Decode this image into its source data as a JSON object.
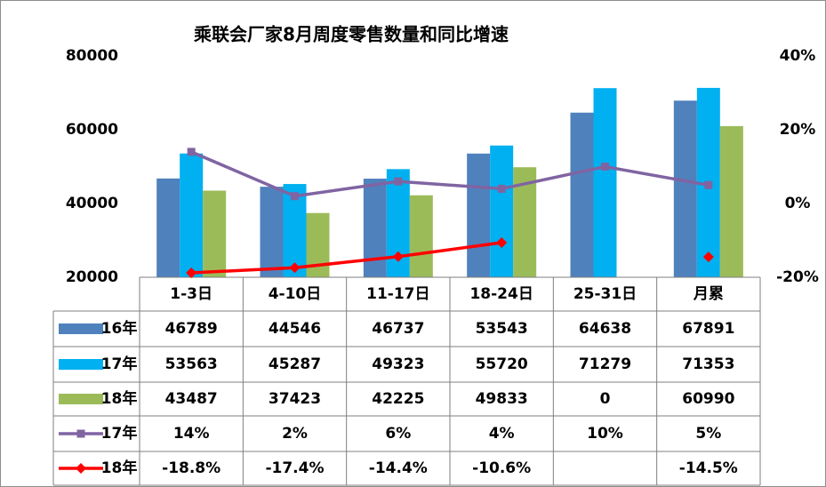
{
  "chart_data": {
    "type": "bar",
    "title": "乘联会厂家8月周度零售数量和同比增速",
    "categories": [
      "1-3日",
      "4-10日",
      "11-17日",
      "18-24日",
      "25-31日",
      "月累"
    ],
    "ylim": [
      20000,
      80000
    ],
    "yticks": [
      20000,
      40000,
      60000,
      80000
    ],
    "y2lim": [
      -20,
      40
    ],
    "y2ticks": [
      {
        "value": -20,
        "label": "-20%"
      },
      {
        "value": 0,
        "label": "0%"
      },
      {
        "value": 20,
        "label": "20%"
      },
      {
        "value": 40,
        "label": "40%"
      }
    ],
    "series": [
      {
        "name": "16年",
        "type": "bar",
        "color": "#4f81bd",
        "values": [
          46789,
          44546,
          46737,
          53543,
          64638,
          67891
        ]
      },
      {
        "name": "17年",
        "type": "bar",
        "color": "#00b0f0",
        "values": [
          53563,
          45287,
          49323,
          55720,
          71279,
          71353
        ]
      },
      {
        "name": "18年",
        "type": "bar",
        "color": "#9bbb59",
        "values": [
          43487,
          37423,
          42225,
          49833,
          0,
          60990
        ]
      },
      {
        "name": "17年",
        "type": "line",
        "marker": "square",
        "axis": "y2",
        "color": "#8064a2",
        "values": [
          14,
          2,
          6,
          4,
          10,
          5
        ],
        "value_labels": [
          "14%",
          "2%",
          "6%",
          "4%",
          "10%",
          "5%"
        ]
      },
      {
        "name": "18年",
        "type": "line",
        "marker": "diamond",
        "axis": "y2",
        "color": "#ff0000",
        "values": [
          -18.8,
          -17.4,
          -14.4,
          -10.6,
          null,
          -14.5
        ],
        "value_labels": [
          "-18.8%",
          "-17.4%",
          "-14.4%",
          "-10.6%",
          null,
          "-14.5%"
        ]
      }
    ]
  }
}
